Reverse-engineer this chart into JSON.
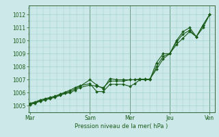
{
  "xlabel": "Pression niveau de la mer( hPa )",
  "bg_color": "#cce8e8",
  "plot_bg_color": "#cce8e8",
  "grid_color": "#99cccc",
  "line_color": "#1a5c1a",
  "spine_color": "#336633",
  "border_color": "#aaddaa",
  "ylim": [
    1004.5,
    1012.7
  ],
  "yticks": [
    1005,
    1006,
    1007,
    1008,
    1009,
    1010,
    1011,
    1012
  ],
  "day_labels": [
    "Mar",
    "Sam",
    "Mer",
    "Jeu",
    "Ven"
  ],
  "day_x": [
    0,
    36,
    60,
    84,
    108
  ],
  "xlim": [
    -1,
    111
  ],
  "line1_x": [
    0,
    3,
    6,
    9,
    12,
    15,
    18,
    21,
    24,
    27,
    30,
    36,
    40,
    44,
    48,
    52,
    56,
    60,
    63,
    66,
    69,
    72,
    76,
    80,
    84,
    88,
    92,
    96,
    100,
    104,
    108
  ],
  "line1_y": [
    1005.2,
    1005.3,
    1005.45,
    1005.55,
    1005.65,
    1005.75,
    1005.9,
    1006.05,
    1006.2,
    1006.4,
    1006.55,
    1006.7,
    1006.1,
    1006.1,
    1006.65,
    1006.65,
    1006.65,
    1006.5,
    1006.7,
    1007.0,
    1007.0,
    1007.0,
    1008.3,
    1009.0,
    1009.0,
    1010.0,
    1010.7,
    1011.0,
    1010.3,
    1011.0,
    1012.0
  ],
  "line2_x": [
    0,
    3,
    6,
    9,
    12,
    15,
    18,
    21,
    24,
    27,
    30,
    36,
    40,
    44,
    48,
    52,
    56,
    60,
    63,
    66,
    69,
    72,
    76,
    80,
    84,
    88,
    92,
    96,
    100,
    104,
    108
  ],
  "line2_y": [
    1005.15,
    1005.25,
    1005.4,
    1005.5,
    1005.6,
    1005.7,
    1005.85,
    1006.0,
    1006.1,
    1006.3,
    1006.5,
    1007.0,
    1006.6,
    1006.3,
    1007.1,
    1007.0,
    1007.0,
    1007.0,
    1007.0,
    1007.0,
    1007.0,
    1007.0,
    1008.0,
    1008.8,
    1009.0,
    1009.9,
    1010.5,
    1010.8,
    1010.3,
    1011.2,
    1012.0
  ],
  "line3_x": [
    0,
    3,
    6,
    9,
    12,
    15,
    18,
    21,
    24,
    27,
    30,
    36,
    40,
    44,
    48,
    52,
    56,
    60,
    63,
    66,
    69,
    72,
    76,
    80,
    84,
    88,
    92,
    96,
    100,
    104,
    108
  ],
  "line3_y": [
    1005.1,
    1005.2,
    1005.35,
    1005.45,
    1005.55,
    1005.65,
    1005.8,
    1005.95,
    1006.0,
    1006.2,
    1006.4,
    1006.6,
    1006.5,
    1006.4,
    1006.9,
    1006.9,
    1006.9,
    1007.0,
    1007.0,
    1007.05,
    1007.05,
    1007.05,
    1007.8,
    1008.6,
    1009.0,
    1009.7,
    1010.2,
    1010.7,
    1010.3,
    1011.2,
    1012.0
  ],
  "xlabel_fontsize": 6.0,
  "tick_fontsize": 5.5,
  "linewidth": 0.8,
  "markersize": 2.0
}
